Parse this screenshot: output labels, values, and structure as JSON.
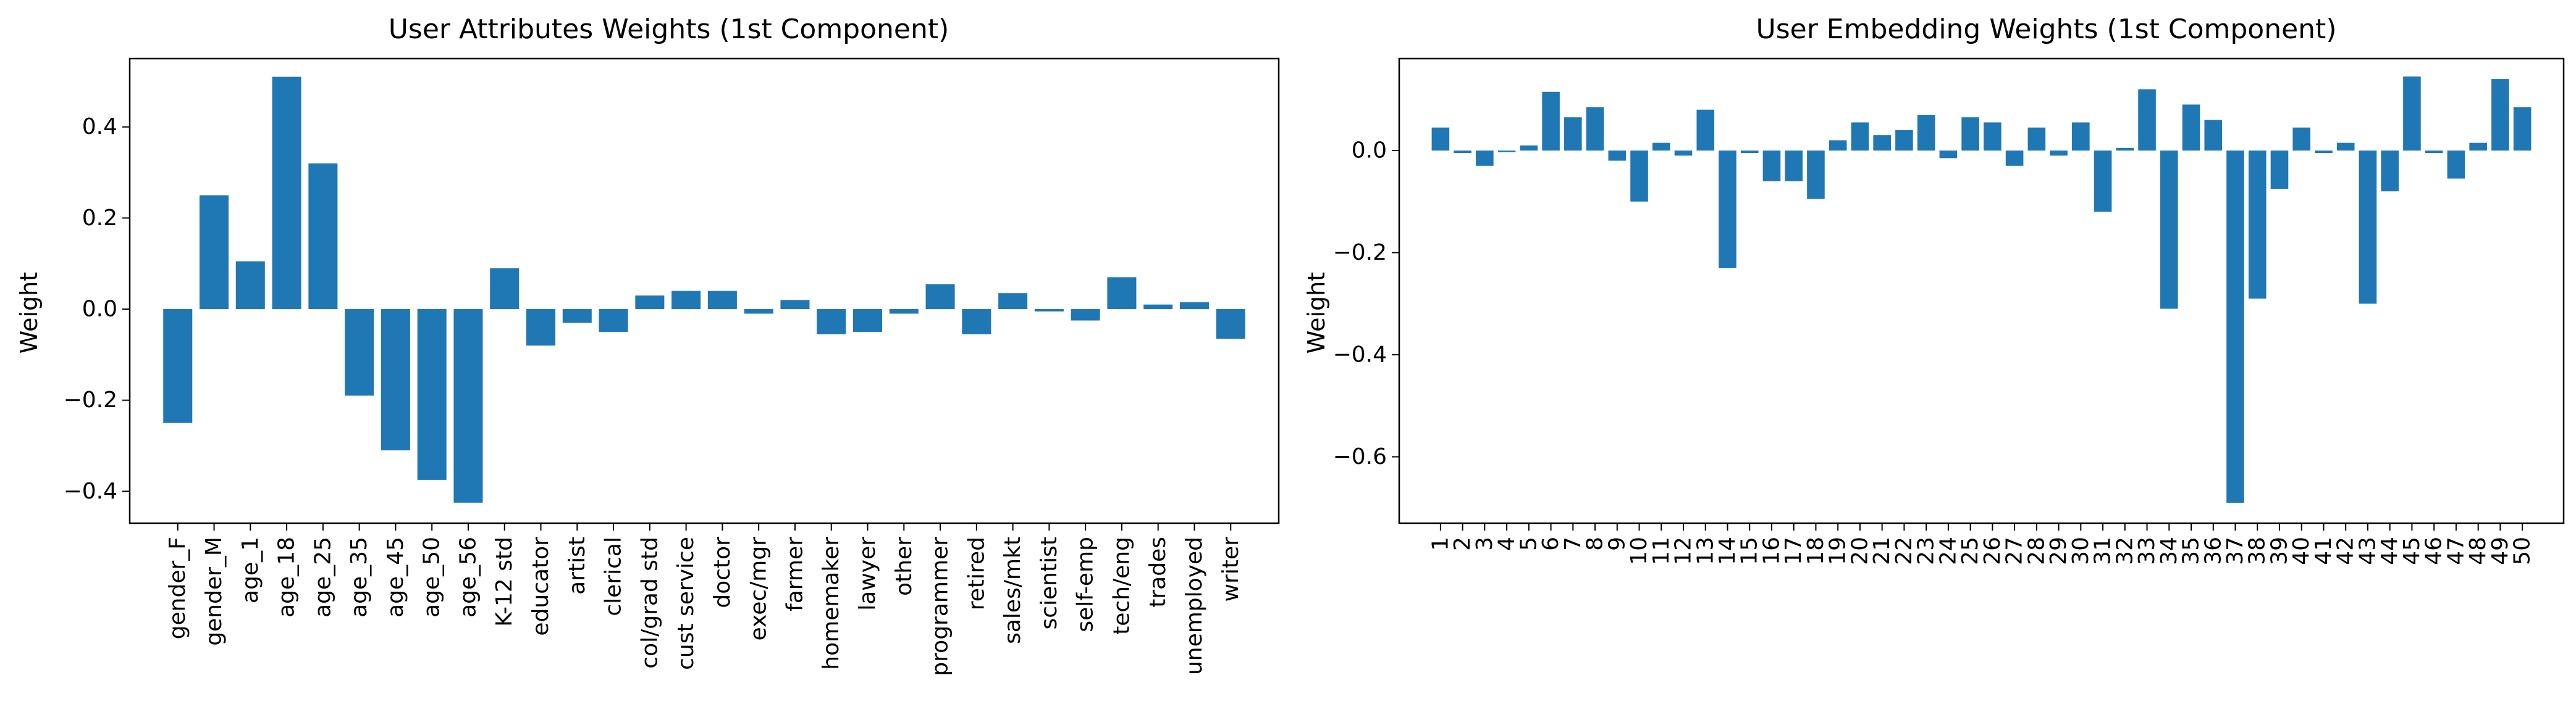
{
  "chart_data": [
    {
      "type": "bar",
      "title": "User Attributes Weights (1st Component)",
      "xlabel": "",
      "ylabel": "Weight",
      "ylim": [
        -0.47,
        0.55
      ],
      "yticks": [
        -0.4,
        -0.2,
        0.0,
        0.2,
        0.4
      ],
      "ytick_labels": [
        "−0.4",
        "−0.2",
        "0.0",
        "0.2",
        "0.4"
      ],
      "grid": false,
      "bar_color": "#1f77b4",
      "categories": [
        "gender_F",
        "gender_M",
        "age_1",
        "age_18",
        "age_25",
        "age_35",
        "age_45",
        "age_50",
        "age_56",
        "K-12 std",
        "educator",
        "artist",
        "clerical",
        "col/grad std",
        "cust service",
        "doctor",
        "exec/mgr",
        "farmer",
        "homemaker",
        "lawyer",
        "other",
        "programmer",
        "retired",
        "sales/mkt",
        "scientist",
        "self-emp",
        "tech/eng",
        "trades",
        "unemployed",
        "writer"
      ],
      "values": [
        -0.25,
        0.25,
        0.105,
        0.51,
        0.32,
        -0.19,
        -0.31,
        -0.375,
        -0.425,
        0.09,
        -0.08,
        -0.03,
        -0.05,
        0.03,
        0.04,
        0.04,
        -0.01,
        0.02,
        -0.055,
        -0.05,
        -0.01,
        0.055,
        -0.055,
        0.035,
        -0.005,
        -0.025,
        0.07,
        0.01,
        0.015,
        -0.065
      ]
    },
    {
      "type": "bar",
      "title": "User Embedding Weights (1st Component)",
      "xlabel": "",
      "ylabel": "Weight",
      "ylim": [
        -0.73,
        0.18
      ],
      "yticks": [
        -0.6,
        -0.4,
        -0.2,
        0.0
      ],
      "ytick_labels": [
        "−0.6",
        "−0.4",
        "−0.2",
        "0.0"
      ],
      "grid": false,
      "bar_color": "#1f77b4",
      "categories": [
        "1",
        "2",
        "3",
        "4",
        "5",
        "6",
        "7",
        "8",
        "9",
        "10",
        "11",
        "12",
        "13",
        "14",
        "15",
        "16",
        "17",
        "18",
        "19",
        "20",
        "21",
        "22",
        "23",
        "24",
        "25",
        "26",
        "27",
        "28",
        "29",
        "30",
        "31",
        "32",
        "33",
        "34",
        "35",
        "36",
        "37",
        "38",
        "39",
        "40",
        "41",
        "42",
        "43",
        "44",
        "45",
        "46",
        "47",
        "48",
        "49",
        "50"
      ],
      "values": [
        0.045,
        -0.005,
        -0.03,
        -0.003,
        0.01,
        0.115,
        0.065,
        0.085,
        -0.02,
        -0.1,
        0.015,
        -0.01,
        0.08,
        -0.23,
        -0.005,
        -0.06,
        -0.06,
        -0.095,
        0.02,
        0.055,
        0.03,
        0.04,
        0.07,
        -0.015,
        0.065,
        0.055,
        -0.03,
        0.045,
        -0.01,
        0.055,
        -0.12,
        0.005,
        0.12,
        -0.31,
        0.09,
        0.06,
        -0.69,
        -0.29,
        -0.075,
        0.045,
        -0.005,
        0.015,
        -0.3,
        -0.08,
        0.145,
        -0.005,
        -0.055,
        0.015,
        0.14,
        0.085
      ]
    }
  ]
}
